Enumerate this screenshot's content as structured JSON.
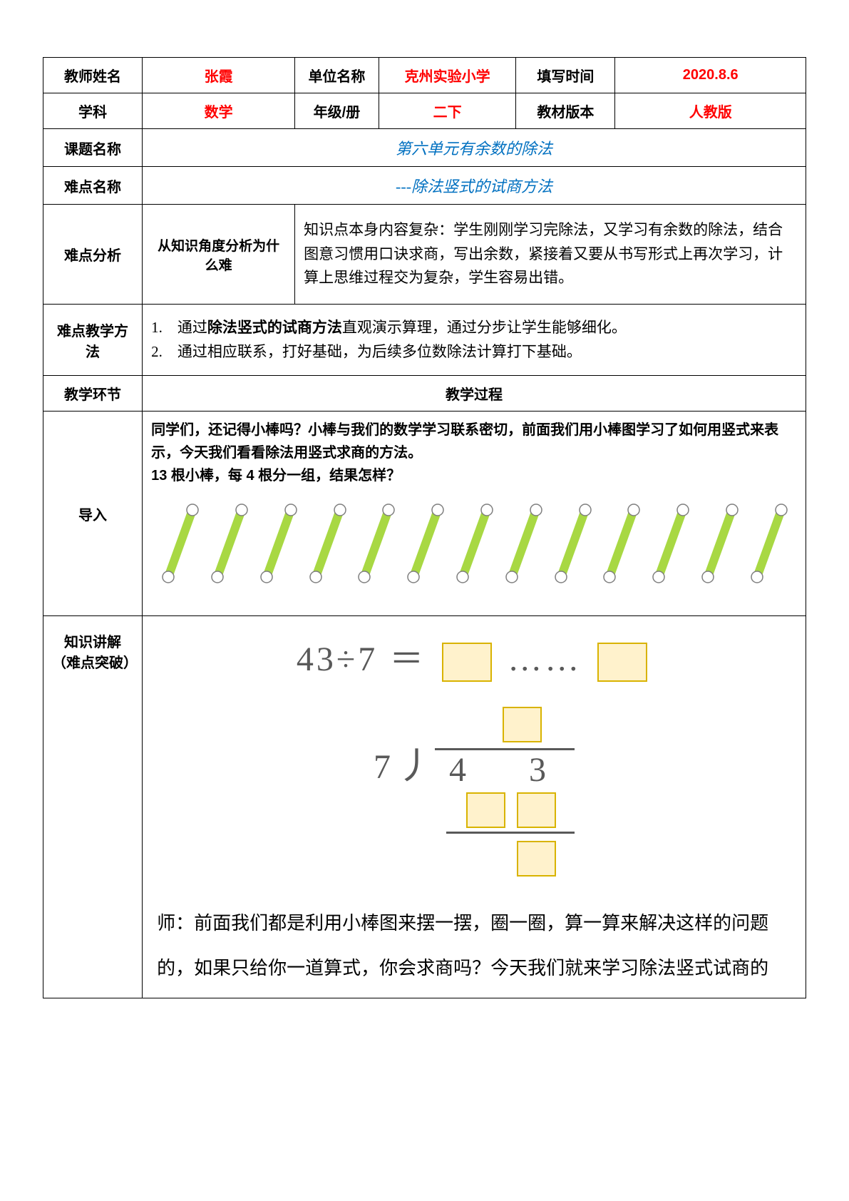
{
  "header": {
    "teacher_name_label": "教师姓名",
    "teacher_name": "张霞",
    "unit_name_label": "单位名称",
    "unit_name": "克州实验小学",
    "fill_time_label": "填写时间",
    "fill_time": "2020.8.6",
    "subject_label": "学科",
    "subject": "数学",
    "grade_label": "年级/册",
    "grade": "二下",
    "textbook_label": "教材版本",
    "textbook": "人教版"
  },
  "rows": {
    "lesson_title_label": "课题名称",
    "lesson_title": "第六单元有余数的除法",
    "difficulty_name_label": "难点名称",
    "difficulty_name": "---除法竖式的试商方法",
    "difficulty_analysis_label": "难点分析",
    "analysis_sub": "从知识角度分析为什么难",
    "analysis_text": "知识点本身内容复杂：学生刚刚学习完除法，又学习有余数的除法，结合图意习惯用口诀求商，写出余数，紧接着又要从书写形式上再次学习，计算上思维过程交为复杂，学生容易出错。",
    "teaching_method_label": "难点教学方法",
    "method_1_prefix": "1.　通过",
    "method_1_bold": "除法竖式的试商方法",
    "method_1_rest": "直观演示算理，通过分步让学生能够细化。",
    "method_2": "2.　通过相应联系，打好基础，为后续多位数除法计算打下基础。",
    "phase_label": "教学环节",
    "process_label": "教学过程",
    "intro_label": "导入",
    "intro_text_1": "同学们，还记得小棒吗？小棒与我们的数学学习联系密切，前面我们用小棒图学习了如何用竖式来表示，今天我们看看除法用竖式求商的方法。",
    "intro_text_2": "13 根小棒，每 4 根分一组，结果怎样？",
    "knowledge_label_1": "知识讲解",
    "knowledge_label_2": "（难点突破）",
    "equation_lhs": "43÷7 ＝",
    "equation_dots": "……",
    "longdiv_divisor": "7",
    "longdiv_dividend": "4　3",
    "narration_prefix": "师：",
    "narration_text": "前面我们都是利用小棒图来摆一摆，圈一圈，算一算来解决这样的问题的，如果只给你一道算式，你会求商吗？今天我们就来学习除法竖式试商的"
  },
  "sticks": {
    "count": 13,
    "body_color": "#a8d843",
    "body_stroke": "#7fa82e",
    "tip_fill": "#ffffff",
    "tip_stroke": "#7f7f7f"
  },
  "colors": {
    "border": "#000000",
    "red": "#ff0000",
    "blue": "#0070c0",
    "box_border": "#d9b300",
    "box_fill": "#fff2cc",
    "grey_text": "#595959"
  }
}
